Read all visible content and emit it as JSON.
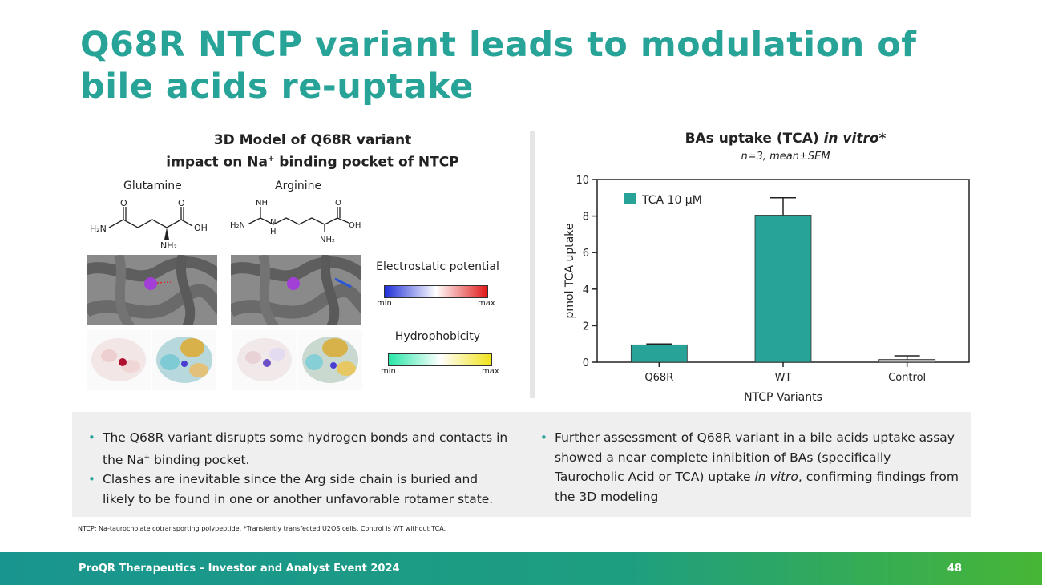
{
  "slide": {
    "title": "Q68R NTCP variant leads to modulation of bile acids re-uptake"
  },
  "left_panel": {
    "heading_line1": "3D Model of Q68R variant",
    "heading_line2_pre": "impact on Na",
    "heading_line2_sup": "+",
    "heading_line2_post": " binding pocket of NTCP",
    "molecule1_name": "Glutamine",
    "molecule2_name": "Arginine",
    "glutamine_labels": {
      "nh2_left": "H₂N",
      "o_left": "O",
      "o_right": "O",
      "oh": "OH",
      "nh2_bottom": "NH₂"
    },
    "arginine_labels": {
      "nh": "NH",
      "h2n": "H₂N",
      "n": "N",
      "h": "H",
      "o": "O",
      "oh": "OH",
      "nh2": "NH₂"
    },
    "legend_electrostatic": "Electrostatic potential",
    "legend_hydrophobicity": "Hydrophobicity",
    "min_label": "min",
    "max_label": "max",
    "colors": {
      "electro_min": "#1f2fd8",
      "electro_max": "#e01818",
      "hydro_min": "#27e6a8",
      "hydro_max": "#f0e21a",
      "sodium_ion": "#a23fd6"
    }
  },
  "chart_header": {
    "title_pre": "BAs uptake (TCA) ",
    "title_italic": "in vitro",
    "title_post": "*",
    "subtitle": "n=3, mean±SEM"
  },
  "chart_data": {
    "type": "bar",
    "categories": [
      "Q68R",
      "WT",
      "Control"
    ],
    "series": [
      {
        "name": "TCA 10 μM",
        "values": [
          0.95,
          8.05,
          0.15
        ],
        "sem": [
          0.05,
          0.95,
          0.2
        ],
        "color": "#27a398"
      }
    ],
    "control_color": "#b3b3b3",
    "xlabel": "NTCP Variants",
    "ylabel": "pmol TCA uptake",
    "ylim": [
      0,
      10
    ],
    "yticks": [
      0,
      2,
      4,
      6,
      8,
      10
    ],
    "legend_position": "top-left",
    "grid": false
  },
  "bullets": {
    "left": [
      {
        "pre": "The Q68R variant disrupts some hydrogen bonds and contacts in the Na",
        "sup": "+",
        "post": " binding pocket."
      },
      {
        "pre": "Clashes are inevitable since the Arg side chain is buried and likely to be found in one or another unfavorable rotamer state.",
        "sup": "",
        "post": ""
      }
    ],
    "right": [
      {
        "pre": "Further assessment of Q68R variant in a bile acids uptake assay showed a near complete inhibition of BAs (specifically Taurocholic Acid or TCA) uptake ",
        "italic": "in vitro",
        "post": ", confirming findings from the 3D modeling"
      }
    ],
    "bullet_char": "•"
  },
  "footnote": "NTCP: Na-taurocholate cotransporting polypeptide, *Transiently transfected U2OS cells. Control is WT without TCA.",
  "footer": {
    "text": "ProQR Therapeutics – Investor and Analyst Event 2024",
    "page": "48"
  }
}
